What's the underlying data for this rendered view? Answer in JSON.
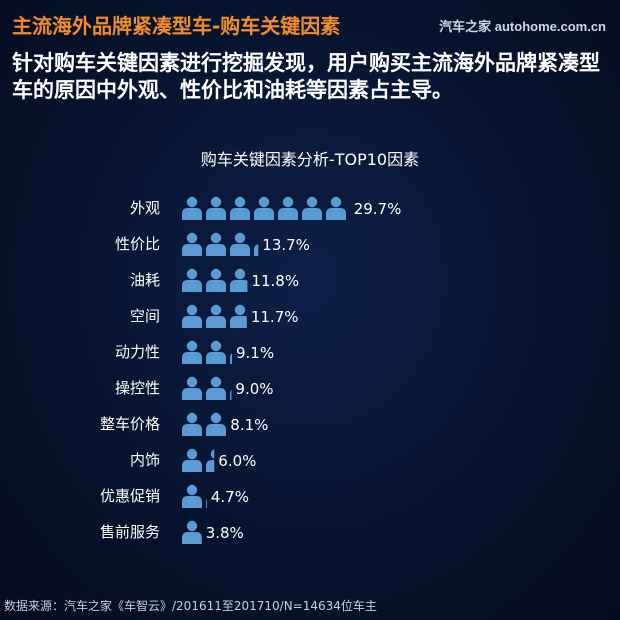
{
  "header": {
    "title": "主流海外品牌紧凑型车-购车关键因素",
    "logo": "汽车之家 autohome.com.cn",
    "subtitle": "针对购车关键因素进行挖掘发现，用户购买主流海外品牌紧凑型车的原因中外观、性价比和油耗等因素占主导。"
  },
  "chart_data": {
    "type": "bar",
    "title": "购车关键因素分析-TOP10因素",
    "categories": [
      "外观",
      "性价比",
      "油耗",
      "空间",
      "动力性",
      "操控性",
      "整车价格",
      "内饰",
      "优惠促销",
      "售前服务"
    ],
    "values": [
      29.7,
      13.7,
      11.8,
      11.7,
      9.1,
      9.0,
      8.1,
      6.0,
      4.7,
      3.8
    ],
    "value_labels": [
      "29.7%",
      "13.7%",
      "11.8%",
      "11.7%",
      "9.1%",
      "9.0%",
      "8.1%",
      "6.0%",
      "4.7%",
      "3.8%"
    ],
    "unit": "%",
    "marker": "person-icon",
    "colors": {
      "marker": "#5b9bd5",
      "text": "#ffffff"
    }
  },
  "footer": {
    "source": "数据来源：汽车之家《车智云》/201611至201710/N=14634位车主"
  }
}
